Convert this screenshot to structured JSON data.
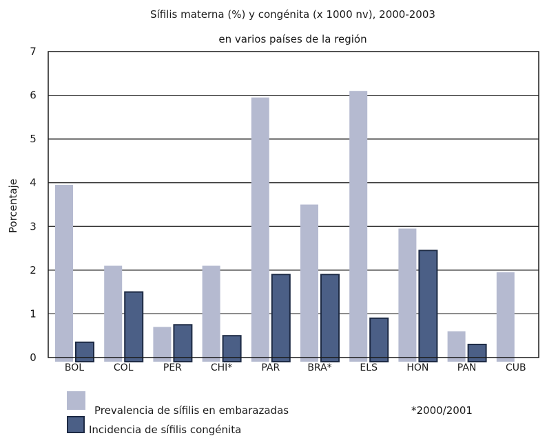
{
  "chart_data": {
    "type": "bar",
    "title_line1": "Sífilis materna (%) y congénita (x 1000 nv), 2000-2003",
    "title_line2": "en varios países de la región",
    "ylabel": "Porcentaje",
    "ylim": [
      0,
      7
    ],
    "yticks": [
      "0",
      "1",
      "2",
      "3",
      "4",
      "5",
      "6",
      "7"
    ],
    "grid": "horizontal",
    "categories": [
      "BOL",
      "COL",
      "PER",
      "CHI*",
      "PAR",
      "BRA*",
      "ELS",
      "HON",
      "PAN",
      "CUB"
    ],
    "series": [
      {
        "name": "Prevalencia de sífilis en embarazadas",
        "color": "#b5bad0",
        "values": [
          3.95,
          2.1,
          0.7,
          2.1,
          5.95,
          3.5,
          6.1,
          2.95,
          0.6,
          1.95
        ]
      },
      {
        "name": "Incidencia de sífilis congénita",
        "color": "#4b5f86",
        "values": [
          0.35,
          1.5,
          0.75,
          0.5,
          1.9,
          1.9,
          0.9,
          2.45,
          0.3,
          null
        ]
      }
    ],
    "legend_position": "bottom-left",
    "footnote": "*2000/2001"
  }
}
